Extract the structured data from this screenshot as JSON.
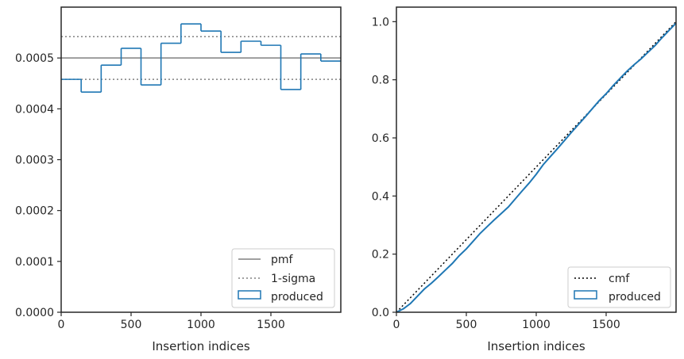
{
  "chart_data": [
    {
      "type": "histogram-step",
      "xlabel": "Insertion indices",
      "ylabel": "",
      "xlim": [
        0,
        2000
      ],
      "ylim": [
        0,
        0.0006
      ],
      "xticks": [
        0,
        500,
        1000,
        1500
      ],
      "xtick_labels": [
        "0",
        "500",
        "1000",
        "1500"
      ],
      "yticks": [
        0,
        0.0001,
        0.0002,
        0.0003,
        0.0004,
        0.0005
      ],
      "ytick_labels": [
        "0.0000",
        "0.0001",
        "0.0002",
        "0.0003",
        "0.0004",
        "0.0005"
      ],
      "pmf": 0.0005,
      "sigma_low": 0.000458,
      "sigma_high": 0.000542,
      "bin_edges": [
        0,
        143,
        286,
        429,
        571,
        714,
        857,
        1000,
        1143,
        1286,
        1429,
        1571,
        1714,
        1857,
        2000
      ],
      "bin_values": [
        0.000458,
        0.000433,
        0.000486,
        0.000519,
        0.000447,
        0.000529,
        0.000567,
        0.000553,
        0.000511,
        0.000533,
        0.000525,
        0.000438,
        0.000508,
        0.000494
      ],
      "legend": [
        {
          "label": "pmf",
          "style": "solid",
          "color": "#808080"
        },
        {
          "label": "1-sigma",
          "style": "dotted",
          "color": "#808080"
        },
        {
          "label": "produced",
          "style": "box",
          "color": "#1f77b4"
        }
      ],
      "legend_position": "bottom-right"
    },
    {
      "type": "line",
      "xlabel": "Insertion indices",
      "ylabel": "",
      "xlim": [
        0,
        2000
      ],
      "ylim": [
        0,
        1.05
      ],
      "xticks": [
        0,
        500,
        1000,
        1500
      ],
      "xtick_labels": [
        "0",
        "500",
        "1000",
        "1500"
      ],
      "yticks": [
        0,
        0.2,
        0.4,
        0.6,
        0.8,
        1.0
      ],
      "ytick_labels": [
        "0.0",
        "0.2",
        "0.4",
        "0.6",
        "0.8",
        "1.0"
      ],
      "cmf_x": [
        0,
        2000
      ],
      "cmf_y": [
        0,
        1.0
      ],
      "produced_x": [
        0,
        50,
        100,
        150,
        200,
        250,
        300,
        350,
        400,
        450,
        500,
        550,
        600,
        650,
        700,
        750,
        800,
        850,
        900,
        950,
        1000,
        1050,
        1100,
        1150,
        1200,
        1250,
        1300,
        1350,
        1400,
        1450,
        1500,
        1550,
        1600,
        1650,
        1700,
        1750,
        1800,
        1850,
        1900,
        1950,
        2000
      ],
      "produced_y": [
        0.0,
        0.012,
        0.03,
        0.055,
        0.08,
        0.1,
        0.122,
        0.145,
        0.168,
        0.195,
        0.218,
        0.245,
        0.272,
        0.295,
        0.318,
        0.34,
        0.362,
        0.39,
        0.418,
        0.445,
        0.475,
        0.508,
        0.535,
        0.562,
        0.59,
        0.618,
        0.645,
        0.672,
        0.7,
        0.728,
        0.752,
        0.78,
        0.805,
        0.83,
        0.852,
        0.872,
        0.895,
        0.918,
        0.945,
        0.97,
        0.995
      ],
      "legend": [
        {
          "label": "cmf",
          "style": "dotted",
          "color": "#000000"
        },
        {
          "label": "produced",
          "style": "box",
          "color": "#1f77b4"
        }
      ],
      "legend_position": "bottom-right"
    }
  ]
}
